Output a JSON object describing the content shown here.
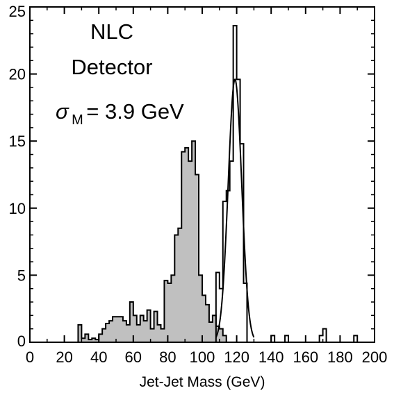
{
  "chart_data": {
    "type": "histogram",
    "xlabel": "Jet-Jet Mass (GeV)",
    "ylabel": "",
    "xlim": [
      0,
      200
    ],
    "ylim": [
      0,
      25
    ],
    "x_ticks": [
      0,
      20,
      40,
      60,
      80,
      100,
      120,
      140,
      160,
      180,
      200
    ],
    "y_ticks": [
      0,
      5,
      10,
      15,
      20,
      25
    ],
    "x_tick_labels": [
      "0",
      "20",
      "40",
      "60",
      "80",
      "100",
      "120",
      "140",
      "160",
      "180",
      "200"
    ],
    "y_tick_labels": [
      "0",
      "5",
      "10",
      "15",
      "20",
      "25"
    ],
    "bin_width": 2,
    "annotations": {
      "line1": "NLC",
      "line2": "Detector",
      "sigma_symbol": "σ",
      "sigma_subscript": "M",
      "sigma_value": "= 3.9 GeV"
    },
    "series": [
      {
        "style": "filled",
        "fill": "#c0c0c0",
        "bins": [
          [
            28,
            1.3
          ],
          [
            30,
            0.3
          ],
          [
            32,
            0.6
          ],
          [
            34,
            0.2
          ],
          [
            36,
            0.3
          ],
          [
            38,
            0.2
          ],
          [
            40,
            0.6
          ],
          [
            42,
            1.0
          ],
          [
            44,
            1.4
          ],
          [
            46,
            1.6
          ],
          [
            48,
            1.9
          ],
          [
            50,
            1.9
          ],
          [
            52,
            1.9
          ],
          [
            54,
            1.6
          ],
          [
            56,
            1.3
          ],
          [
            58,
            3.0
          ],
          [
            60,
            2.0
          ],
          [
            62,
            1.3
          ],
          [
            64,
            2.0
          ],
          [
            66,
            1.6
          ],
          [
            68,
            2.4
          ],
          [
            70,
            1.0
          ],
          [
            72,
            2.3
          ],
          [
            74,
            1.3
          ],
          [
            76,
            1.0
          ],
          [
            78,
            4.6
          ],
          [
            80,
            4.4
          ],
          [
            82,
            5.0
          ],
          [
            84,
            8.0
          ],
          [
            86,
            8.5
          ],
          [
            88,
            14.2
          ],
          [
            90,
            14.5
          ],
          [
            92,
            13.5
          ],
          [
            94,
            15.0
          ],
          [
            96,
            12.5
          ],
          [
            98,
            5.0
          ],
          [
            100,
            3.5
          ],
          [
            102,
            2.8
          ],
          [
            104,
            1.5
          ],
          [
            106,
            2.0
          ],
          [
            108,
            1.2
          ],
          [
            110,
            1.0
          ],
          [
            112,
            0.5
          ]
        ]
      },
      {
        "style": "outline",
        "bins": [
          [
            108,
            5.2
          ],
          [
            110,
            4.0
          ],
          [
            112,
            10.5
          ],
          [
            114,
            11.3
          ],
          [
            116,
            13.5
          ],
          [
            118,
            23.6
          ],
          [
            120,
            19.6
          ],
          [
            122,
            14.8
          ],
          [
            124,
            4.4
          ],
          [
            126,
            0.0
          ],
          [
            140,
            0.5
          ],
          [
            142,
            0.0
          ],
          [
            148,
            0.5
          ],
          [
            150,
            0.0
          ],
          [
            168,
            0.5
          ],
          [
            170,
            1.0
          ],
          [
            172,
            0.0
          ],
          [
            188,
            0.5
          ],
          [
            190,
            0.0
          ]
        ]
      }
    ],
    "fit": {
      "type": "gaussian",
      "mean": 119,
      "sigma": 3.9,
      "amplitude": 19.6,
      "x_range": [
        108,
        130
      ]
    }
  }
}
